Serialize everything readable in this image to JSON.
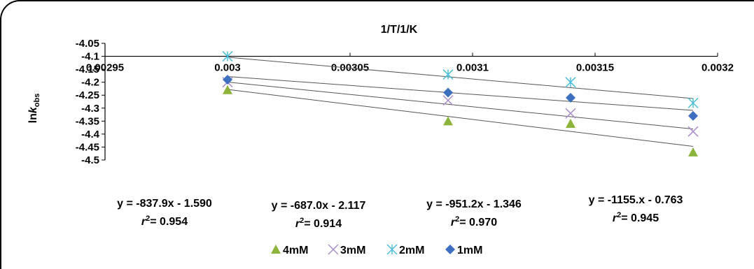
{
  "chart_data": {
    "type": "scatter",
    "xlabel": "1/T/1/K",
    "ylabel_main": "ln",
    "ylabel_italic": "k",
    "ylabel_sub": "obs",
    "xlim": [
      0.00295,
      0.0032
    ],
    "ylim": [
      -4.5,
      -4.05
    ],
    "x_ticks": [
      "0.00295",
      "0.003",
      "0.00305",
      "0.0031",
      "0.00315",
      "0.0032"
    ],
    "y_ticks": [
      "-4.05",
      "-4.1",
      "-4.15",
      "-4.2",
      "-4.25",
      "-4.3",
      "-4.35",
      "-4.4",
      "-4.45",
      "-4.5"
    ],
    "x_axis_at_y": -4.1,
    "legend_position": "bottom",
    "series": [
      {
        "name": "4mM",
        "marker": "triangle",
        "color": "#8cb33a",
        "x": [
          0.003,
          0.00309,
          0.00314,
          0.00319
        ],
        "y": [
          -4.23,
          -4.35,
          -4.36,
          -4.47
        ],
        "fit": {
          "slope": -837.9,
          "intercept": -1.59
        },
        "equation": "y = -837.9x - 1.590",
        "r2": "= 0.954"
      },
      {
        "name": "3mM",
        "marker": "x",
        "color": "#a98dc9",
        "x": [
          0.003,
          0.00309,
          0.00314,
          0.00319
        ],
        "y": [
          -4.2,
          -4.27,
          -4.32,
          -4.39
        ],
        "fit": {
          "slope": -687.0,
          "intercept": -2.117
        },
        "equation": "y = -687.0x - 2.117",
        "r2": "= 0.914"
      },
      {
        "name": "2mM",
        "marker": "asterisk",
        "color": "#4dbdd9",
        "x": [
          0.003,
          0.00309,
          0.00314,
          0.00319
        ],
        "y": [
          -4.1,
          -4.17,
          -4.2,
          -4.28
        ],
        "fit": {
          "slope": -951.2,
          "intercept": -1.346
        },
        "equation": "y = -951.2x - 1.346",
        "r2": "= 0.970"
      },
      {
        "name": "1mM",
        "marker": "diamond",
        "color": "#3c6fbf",
        "x": [
          0.003,
          0.00309,
          0.00314,
          0.00319
        ],
        "y": [
          -4.19,
          -4.24,
          -4.26,
          -4.33
        ],
        "fit": {
          "slope": -1155.0,
          "intercept": -0.763
        },
        "equation": "y = -1155.x - 0.763",
        "r2": "= 0.945"
      }
    ]
  }
}
